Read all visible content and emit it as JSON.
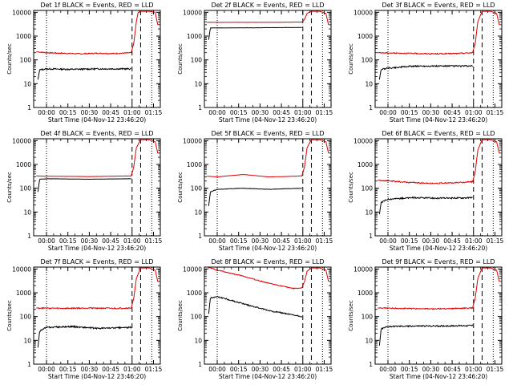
{
  "window": {
    "background": "#ffffff"
  },
  "colors": {
    "events": "#000000",
    "lld": "#dd0000",
    "axes": "#000000"
  },
  "panel_grid": {
    "rows": 3,
    "cols": 3
  },
  "chart_data": [
    {
      "type": "line",
      "title": "Det 1f BLACK = Events, RED = LLD",
      "xlabel": "Start Time (04-Nov-12 23:46:20)",
      "ylabel": "Counts/sec",
      "yscale": "log",
      "ylim": [
        1,
        12000
      ],
      "xlim": [
        -0.15,
        1.33
      ],
      "xticks": [
        "00:00",
        "00:15",
        "00:30",
        "00:45",
        "01:00",
        "01:15"
      ],
      "yticks": [
        "1",
        "10",
        "100",
        "1000",
        "10000"
      ],
      "markers": {
        "dotted": [
          0.0,
          1.23
        ],
        "dashed": [
          1.0,
          1.1
        ]
      },
      "series": [
        {
          "role": "lld",
          "pts": [
            [
              -0.12,
              220
            ],
            [
              0.0,
              200
            ],
            [
              0.2,
              190
            ],
            [
              0.4,
              180
            ],
            [
              0.6,
              190
            ],
            [
              0.8,
              185
            ],
            [
              0.99,
              200
            ]
          ],
          "noise": 0.05,
          "tail": [
            [
              1.02,
              500
            ],
            [
              1.05,
              4000
            ],
            [
              1.07,
              9500
            ],
            [
              1.1,
              11000
            ],
            [
              1.2,
              11000
            ],
            [
              1.27,
              10000
            ],
            [
              1.3,
              3000
            ]
          ]
        },
        {
          "role": "events",
          "pts": [
            [
              -0.1,
              15
            ],
            [
              -0.08,
              38
            ],
            [
              0.0,
              42
            ],
            [
              0.3,
              40
            ],
            [
              0.6,
              42
            ],
            [
              0.99,
              42
            ]
          ],
          "noise": 0.07,
          "tail": []
        }
      ]
    },
    {
      "type": "line",
      "title": "Det 2f BLACK = Events, RED = LLD",
      "xlabel": "Start Time (04-Nov-12 23:46:20)",
      "ylabel": "Counts/sec",
      "yscale": "log",
      "ylim": [
        1,
        12000
      ],
      "xlim": [
        -0.15,
        1.33
      ],
      "xticks": [
        "00:00",
        "00:15",
        "00:30",
        "00:45",
        "01:00",
        "01:15"
      ],
      "yticks": [
        "1",
        "10",
        "100",
        "1000",
        "10000"
      ],
      "markers": {
        "dotted": [
          0.0,
          1.23
        ],
        "dashed": [
          1.0,
          1.1
        ]
      },
      "series": [
        {
          "role": "lld",
          "pts": [
            [
              -0.12,
              3800
            ],
            [
              0.0,
              3800
            ],
            [
              0.5,
              3800
            ],
            [
              0.99,
              3900
            ]
          ],
          "noise": 0.01,
          "tail": [
            [
              1.02,
              5000
            ],
            [
              1.05,
              9000
            ],
            [
              1.1,
              11000
            ],
            [
              1.2,
              11000
            ],
            [
              1.27,
              9000
            ],
            [
              1.3,
              3000
            ]
          ]
        },
        {
          "role": "events",
          "pts": [
            [
              -0.1,
              700
            ],
            [
              -0.08,
              2200
            ],
            [
              0.0,
              2200
            ],
            [
              0.5,
              2250
            ],
            [
              0.99,
              2300
            ]
          ],
          "noise": 0.01,
          "tail": []
        }
      ]
    },
    {
      "type": "line",
      "title": "Det 3f BLACK = Events, RED = LLD",
      "xlabel": "Start Time (04-Nov-12 23:46:20)",
      "ylabel": "Counts/sec",
      "yscale": "log",
      "ylim": [
        1,
        12000
      ],
      "xlim": [
        -0.15,
        1.33
      ],
      "xticks": [
        "00:00",
        "00:15",
        "00:30",
        "00:45",
        "01:00",
        "01:15"
      ],
      "yticks": [
        "1",
        "10",
        "100",
        "1000",
        "10000"
      ],
      "markers": {
        "dotted": [
          0.0,
          1.23
        ],
        "dashed": [
          1.0,
          1.1
        ]
      },
      "series": [
        {
          "role": "lld",
          "pts": [
            [
              -0.12,
              200
            ],
            [
              0.2,
              190
            ],
            [
              0.5,
              180
            ],
            [
              0.8,
              185
            ],
            [
              0.99,
              200
            ]
          ],
          "noise": 0.05,
          "tail": [
            [
              1.02,
              500
            ],
            [
              1.05,
              4000
            ],
            [
              1.1,
              11000
            ],
            [
              1.2,
              11000
            ],
            [
              1.27,
              9000
            ],
            [
              1.3,
              3000
            ]
          ]
        },
        {
          "role": "events",
          "pts": [
            [
              -0.1,
              15
            ],
            [
              -0.08,
              40
            ],
            [
              0.0,
              45
            ],
            [
              0.3,
              55
            ],
            [
              0.6,
              55
            ],
            [
              0.99,
              55
            ]
          ],
          "noise": 0.07,
          "tail": []
        }
      ]
    },
    {
      "type": "line",
      "title": "Det 4f BLACK = Events, RED = LLD",
      "xlabel": "Start Time (04-Nov-12 23:46:20)",
      "ylabel": "Counts/sec",
      "yscale": "log",
      "ylim": [
        1,
        12000
      ],
      "xlim": [
        -0.15,
        1.33
      ],
      "xticks": [
        "00:00",
        "00:15",
        "00:30",
        "00:45",
        "01:00",
        "01:15"
      ],
      "yticks": [
        "1",
        "10",
        "100",
        "1000",
        "10000"
      ],
      "markers": {
        "dotted": [
          0.0,
          1.23
        ],
        "dashed": [
          1.0,
          1.1
        ]
      },
      "series": [
        {
          "role": "lld",
          "pts": [
            [
              -0.12,
              330
            ],
            [
              0.0,
              320
            ],
            [
              0.5,
              310
            ],
            [
              0.99,
              330
            ]
          ],
          "noise": 0.01,
          "tail": [
            [
              1.02,
              800
            ],
            [
              1.05,
              5000
            ],
            [
              1.1,
              11000
            ],
            [
              1.2,
              11000
            ],
            [
              1.27,
              9000
            ],
            [
              1.3,
              3000
            ]
          ]
        },
        {
          "role": "events",
          "pts": [
            [
              -0.1,
              70
            ],
            [
              -0.08,
              240
            ],
            [
              0.0,
              250
            ],
            [
              0.5,
              240
            ],
            [
              0.99,
              250
            ]
          ],
          "noise": 0.01,
          "tail": []
        }
      ]
    },
    {
      "type": "line",
      "title": "Det 5f BLACK = Events, RED = LLD",
      "xlabel": "Start Time (04-Nov-12 23:46:20)",
      "ylabel": "Counts/sec",
      "yscale": "log",
      "ylim": [
        1,
        12000
      ],
      "xlim": [
        -0.15,
        1.33
      ],
      "xticks": [
        "00:00",
        "00:15",
        "00:30",
        "00:45",
        "01:00",
        "01:15"
      ],
      "yticks": [
        "1",
        "10",
        "100",
        "1000",
        "10000"
      ],
      "markers": {
        "dotted": [
          0.0,
          1.23
        ],
        "dashed": [
          1.0,
          1.1
        ]
      },
      "series": [
        {
          "role": "lld",
          "pts": [
            [
              -0.12,
              320
            ],
            [
              0.0,
              300
            ],
            [
              0.3,
              380
            ],
            [
              0.6,
              300
            ],
            [
              0.8,
              310
            ],
            [
              0.99,
              330
            ]
          ],
          "noise": 0.01,
          "tail": [
            [
              1.02,
              800
            ],
            [
              1.05,
              5000
            ],
            [
              1.1,
              11000
            ],
            [
              1.2,
              11000
            ],
            [
              1.27,
              9000
            ],
            [
              1.3,
              3000
            ]
          ]
        },
        {
          "role": "events",
          "pts": [
            [
              -0.1,
              18
            ],
            [
              -0.08,
              70
            ],
            [
              0.0,
              90
            ],
            [
              0.3,
              100
            ],
            [
              0.6,
              90
            ],
            [
              0.99,
              100
            ]
          ],
          "noise": 0.02,
          "tail": []
        }
      ]
    },
    {
      "type": "line",
      "title": "Det 6f BLACK = Events, RED = LLD",
      "xlabel": "Start Time (04-Nov-12 23:46:20)",
      "ylabel": "Counts/sec",
      "yscale": "log",
      "ylim": [
        1,
        12000
      ],
      "xlim": [
        -0.15,
        1.33
      ],
      "xticks": [
        "00:00",
        "00:15",
        "00:30",
        "00:45",
        "01:00",
        "01:15"
      ],
      "yticks": [
        "1",
        "10",
        "100",
        "1000",
        "10000"
      ],
      "markers": {
        "dotted": [
          0.0,
          1.23
        ],
        "dashed": [
          1.0,
          1.1
        ]
      },
      "series": [
        {
          "role": "lld",
          "pts": [
            [
              -0.12,
              220
            ],
            [
              0.2,
              180
            ],
            [
              0.5,
              160
            ],
            [
              0.8,
              170
            ],
            [
              0.99,
              190
            ]
          ],
          "noise": 0.06,
          "tail": [
            [
              1.02,
              500
            ],
            [
              1.05,
              4000
            ],
            [
              1.1,
              11000
            ],
            [
              1.2,
              11000
            ],
            [
              1.27,
              9000
            ],
            [
              1.3,
              3000
            ]
          ]
        },
        {
          "role": "events",
          "pts": [
            [
              -0.1,
              8
            ],
            [
              -0.08,
              25
            ],
            [
              0.0,
              35
            ],
            [
              0.3,
              40
            ],
            [
              0.6,
              38
            ],
            [
              0.99,
              40
            ]
          ],
          "noise": 0.07,
          "tail": []
        }
      ]
    },
    {
      "type": "line",
      "title": "Det 7f BLACK = Events, RED = LLD",
      "xlabel": "Start Time (04-Nov-12 23:46:20)",
      "ylabel": "Counts/sec",
      "yscale": "log",
      "ylim": [
        1,
        12000
      ],
      "xlim": [
        -0.15,
        1.33
      ],
      "xticks": [
        "00:00",
        "00:15",
        "00:30",
        "00:45",
        "01:00",
        "01:15"
      ],
      "yticks": [
        "1",
        "10",
        "100",
        "1000",
        "10000"
      ],
      "markers": {
        "dotted": [
          0.0,
          1.23
        ],
        "dashed": [
          1.0,
          1.1
        ]
      },
      "series": [
        {
          "role": "lld",
          "pts": [
            [
              -0.12,
              230
            ],
            [
              0.2,
              220
            ],
            [
              0.5,
              230
            ],
            [
              0.8,
              220
            ],
            [
              0.99,
              230
            ]
          ],
          "noise": 0.06,
          "tail": [
            [
              1.02,
              600
            ],
            [
              1.05,
              4000
            ],
            [
              1.1,
              11000
            ],
            [
              1.2,
              11000
            ],
            [
              1.27,
              9000
            ],
            [
              1.3,
              3000
            ]
          ]
        },
        {
          "role": "events",
          "pts": [
            [
              -0.1,
              5
            ],
            [
              -0.08,
              25
            ],
            [
              0.0,
              35
            ],
            [
              0.3,
              38
            ],
            [
              0.6,
              32
            ],
            [
              0.99,
              35
            ]
          ],
          "noise": 0.07,
          "tail": []
        }
      ]
    },
    {
      "type": "line",
      "title": "Det 8f BLACK = Events, RED = LLD",
      "xlabel": "Start Time (04-Nov-12 23:46:20)",
      "ylabel": "Counts/sec",
      "yscale": "log",
      "ylim": [
        1,
        12000
      ],
      "xlim": [
        -0.15,
        1.33
      ],
      "xticks": [
        "00:00",
        "00:15",
        "00:30",
        "00:45",
        "01:00",
        "01:15"
      ],
      "yticks": [
        "1",
        "10",
        "100",
        "1000",
        "10000"
      ],
      "markers": {
        "dotted": [
          0.0,
          1.23
        ],
        "dashed": [
          1.0,
          1.1
        ]
      },
      "series": [
        {
          "role": "lld",
          "pts": [
            [
              -0.12,
              12000
            ],
            [
              0.0,
              9000
            ],
            [
              0.3,
              5000
            ],
            [
              0.6,
              2500
            ],
            [
              0.9,
              1500
            ],
            [
              0.99,
              1600
            ]
          ],
          "noise": 0.04,
          "tail": [
            [
              1.02,
              3000
            ],
            [
              1.05,
              8000
            ],
            [
              1.1,
              11000
            ],
            [
              1.2,
              11000
            ],
            [
              1.27,
              9000
            ],
            [
              1.3,
              3000
            ]
          ]
        },
        {
          "role": "events",
          "pts": [
            [
              -0.1,
              130
            ],
            [
              -0.08,
              600
            ],
            [
              0.0,
              700
            ],
            [
              0.3,
              350
            ],
            [
              0.6,
              180
            ],
            [
              0.99,
              100
            ]
          ],
          "noise": 0.06,
          "tail": []
        }
      ]
    },
    {
      "type": "line",
      "title": "Det 9f BLACK = Events, RED = LLD",
      "xlabel": "Start Time (04-Nov-12 23:46:20)",
      "ylabel": "Counts/sec",
      "yscale": "log",
      "ylim": [
        1,
        12000
      ],
      "xlim": [
        -0.15,
        1.33
      ],
      "xticks": [
        "00:00",
        "00:15",
        "00:30",
        "00:45",
        "01:00",
        "01:15"
      ],
      "yticks": [
        "1",
        "10",
        "100",
        "1000",
        "10000"
      ],
      "markers": {
        "dotted": [
          0.0,
          1.23
        ],
        "dashed": [
          1.0,
          1.1
        ]
      },
      "series": [
        {
          "role": "lld",
          "pts": [
            [
              -0.12,
              230
            ],
            [
              0.2,
              220
            ],
            [
              0.5,
              210
            ],
            [
              0.8,
              220
            ],
            [
              0.99,
              230
            ]
          ],
          "noise": 0.05,
          "tail": [
            [
              1.02,
              600
            ],
            [
              1.05,
              4000
            ],
            [
              1.1,
              11000
            ],
            [
              1.2,
              11000
            ],
            [
              1.27,
              9000
            ],
            [
              1.3,
              3000
            ]
          ]
        },
        {
          "role": "events",
          "pts": [
            [
              -0.1,
              6
            ],
            [
              -0.08,
              30
            ],
            [
              0.0,
              38
            ],
            [
              0.3,
              40
            ],
            [
              0.6,
              40
            ],
            [
              0.99,
              42
            ]
          ],
          "noise": 0.07,
          "tail": []
        }
      ]
    }
  ]
}
